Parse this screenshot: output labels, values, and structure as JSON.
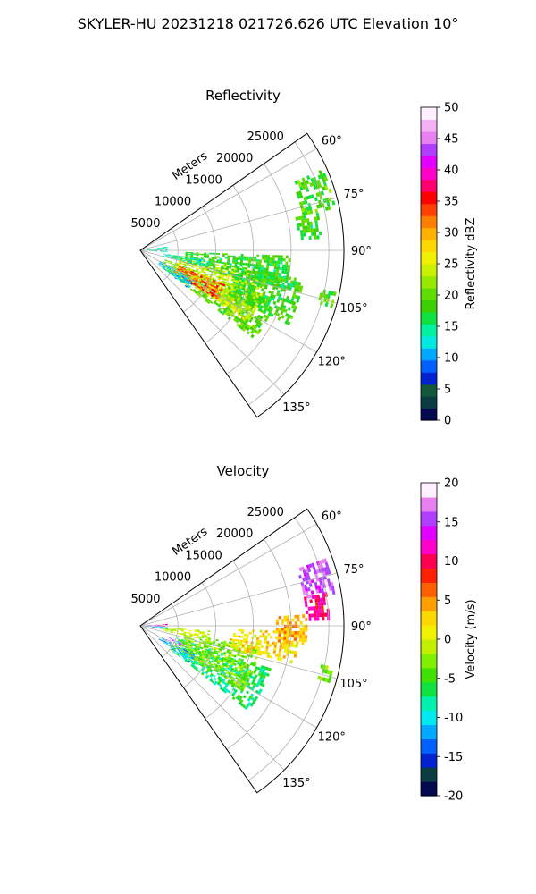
{
  "figure": {
    "suptitle": "SKYLER-HU  20231218  021726.626 UTC Elevation 10°"
  },
  "chart_data": [
    {
      "type": "heatmap",
      "subtype": "polar-sector",
      "title": "Reflectivity",
      "radial_label": "Meters",
      "radial_ticks": [
        "5000",
        "10000",
        "15000",
        "20000",
        "25000"
      ],
      "radial_range": [
        0,
        27000
      ],
      "azimuth_range_deg": [
        55,
        145
      ],
      "azimuth_ticks": [
        "60°",
        "75°",
        "90°",
        "105°",
        "120°",
        "135°"
      ],
      "grid": true,
      "colorbar": {
        "label": "Reflectivity dBZ",
        "range": [
          0,
          50
        ],
        "ticks": [
          "0",
          "5",
          "10",
          "15",
          "20",
          "25",
          "30",
          "35",
          "40",
          "45",
          "50"
        ],
        "colors": [
          "#02094e",
          "#0a3d3f",
          "#12573b",
          "#0222d0",
          "#0060ff",
          "#00a8ff",
          "#00e8e0",
          "#00f0a0",
          "#10e040",
          "#3cd000",
          "#5fdc00",
          "#96e800",
          "#c8f000",
          "#f0f000",
          "#ffd700",
          "#ffb000",
          "#ff8000",
          "#ff4000",
          "#ff0000",
          "#ff006e",
          "#ff00c8",
          "#e000ff",
          "#b040ff",
          "#e880f0",
          "#f4b0f4",
          "#fff0ff"
        ]
      },
      "echo_regions": [
        {
          "az": [
            110,
            128
          ],
          "r": [
            3500,
            19000
          ],
          "value": 20
        },
        {
          "az": [
            100,
            124
          ],
          "r": [
            5000,
            17000
          ],
          "value": 24
        },
        {
          "az": [
            112,
            122
          ],
          "r": [
            5500,
            12000
          ],
          "value": 33
        },
        {
          "az": [
            92,
            106
          ],
          "r": [
            6000,
            20000
          ],
          "value": 18
        },
        {
          "az": [
            118,
            128
          ],
          "r": [
            3000,
            8000
          ],
          "value": 12
        },
        {
          "az": [
            98,
            104
          ],
          "r": [
            3000,
            9000
          ],
          "value": 14
        },
        {
          "az": [
            82,
            93
          ],
          "r": [
            500,
            3500
          ],
          "value": 14
        },
        {
          "az": [
            66,
            78
          ],
          "r": [
            22000,
            26500
          ],
          "value": 19
        },
        {
          "az": [
            78,
            86
          ],
          "r": [
            21000,
            24000
          ],
          "value": 18
        },
        {
          "az": [
            102,
            106
          ],
          "r": [
            24500,
            26500
          ],
          "value": 19
        },
        {
          "az": [
            100,
            116
          ],
          "r": [
            13000,
            22000
          ],
          "value": 18
        }
      ]
    },
    {
      "type": "heatmap",
      "subtype": "polar-sector",
      "title": "Velocity",
      "radial_label": "Meters",
      "radial_ticks": [
        "5000",
        "10000",
        "15000",
        "20000",
        "25000"
      ],
      "radial_range": [
        0,
        27000
      ],
      "azimuth_range_deg": [
        55,
        145
      ],
      "azimuth_ticks": [
        "60°",
        "75°",
        "90°",
        "105°",
        "120°",
        "135°"
      ],
      "grid": true,
      "colorbar": {
        "label": "Velocity (m/s)",
        "range": [
          -20,
          20
        ],
        "ticks": [
          "-20",
          "-15",
          "-10",
          "-5",
          "0",
          "5",
          "10",
          "15",
          "20"
        ],
        "colors": [
          "#02094e",
          "#0a3d3f",
          "#0222d0",
          "#0060ff",
          "#00a8ff",
          "#00e8f0",
          "#00f0b0",
          "#10e040",
          "#40e000",
          "#80f000",
          "#c0f000",
          "#f0f000",
          "#ffd700",
          "#ffa000",
          "#ff6000",
          "#ff2000",
          "#ff0050",
          "#ff00c8",
          "#e000ff",
          "#b040ff",
          "#e880f0",
          "#fff0ff"
        ]
      },
      "echo_regions": [
        {
          "az": [
            108,
            128
          ],
          "r": [
            5000,
            18000
          ],
          "value": -7
        },
        {
          "az": [
            100,
            122
          ],
          "r": [
            6000,
            16000
          ],
          "value": -3
        },
        {
          "az": [
            118,
            126
          ],
          "r": [
            3000,
            8000
          ],
          "value": -11
        },
        {
          "az": [
            112,
            118
          ],
          "r": [
            3500,
            6500
          ],
          "value": 17
        },
        {
          "az": [
            92,
            104
          ],
          "r": [
            12000,
            21000
          ],
          "value": 2
        },
        {
          "az": [
            86,
            96
          ],
          "r": [
            18000,
            22000
          ],
          "value": 4
        },
        {
          "az": [
            70,
            80
          ],
          "r": [
            22000,
            26000
          ],
          "value": 16
        },
        {
          "az": [
            80,
            88
          ],
          "r": [
            22000,
            25000
          ],
          "value": 11
        },
        {
          "az": [
            94,
            102
          ],
          "r": [
            3000,
            9000
          ],
          "value": -1
        },
        {
          "az": [
            86,
            92
          ],
          "r": [
            500,
            3500
          ],
          "value": 12
        },
        {
          "az": [
            92,
            98
          ],
          "r": [
            500,
            3500
          ],
          "value": -12
        },
        {
          "az": [
            102,
            106
          ],
          "r": [
            24500,
            26500
          ],
          "value": -3
        }
      ]
    }
  ]
}
